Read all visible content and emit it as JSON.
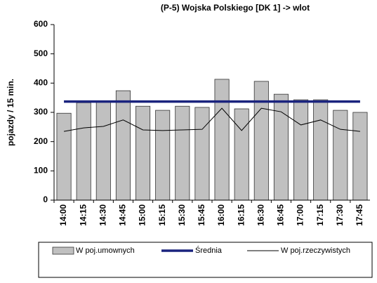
{
  "chart_data": {
    "type": "bar",
    "title": "(P-5) Wojska Polskiego [DK 1] -> wlot",
    "y_label": "pojazdy / 15 min.",
    "categories": [
      "14:00",
      "14:15",
      "14:30",
      "14:45",
      "15:00",
      "15:15",
      "15:30",
      "15:45",
      "16:00",
      "16:15",
      "16:30",
      "16:45",
      "17:00",
      "17:15",
      "17:30",
      "17:45"
    ],
    "series": [
      {
        "name": "W poj.umownych",
        "type": "bar",
        "color": "#c0c0c0",
        "values": [
          297,
          333,
          336,
          374,
          321,
          307,
          321,
          317,
          413,
          312,
          406,
          362,
          343,
          343,
          307,
          300
        ]
      },
      {
        "name": "Średnia",
        "type": "line",
        "color": "#1a237e",
        "values": [
          337,
          337,
          337,
          337,
          337,
          337,
          337,
          337,
          337,
          337,
          337,
          337,
          337,
          337,
          337,
          337
        ]
      },
      {
        "name": "W poj.rzeczywistych",
        "type": "line",
        "color": "#000000",
        "values": [
          235,
          247,
          252,
          274,
          240,
          238,
          240,
          242,
          314,
          238,
          314,
          302,
          257,
          274,
          242,
          235
        ]
      }
    ],
    "ylim": [
      0,
      600
    ],
    "yticks": [
      0,
      100,
      200,
      300,
      400,
      500,
      600
    ],
    "legend": "bottom"
  }
}
